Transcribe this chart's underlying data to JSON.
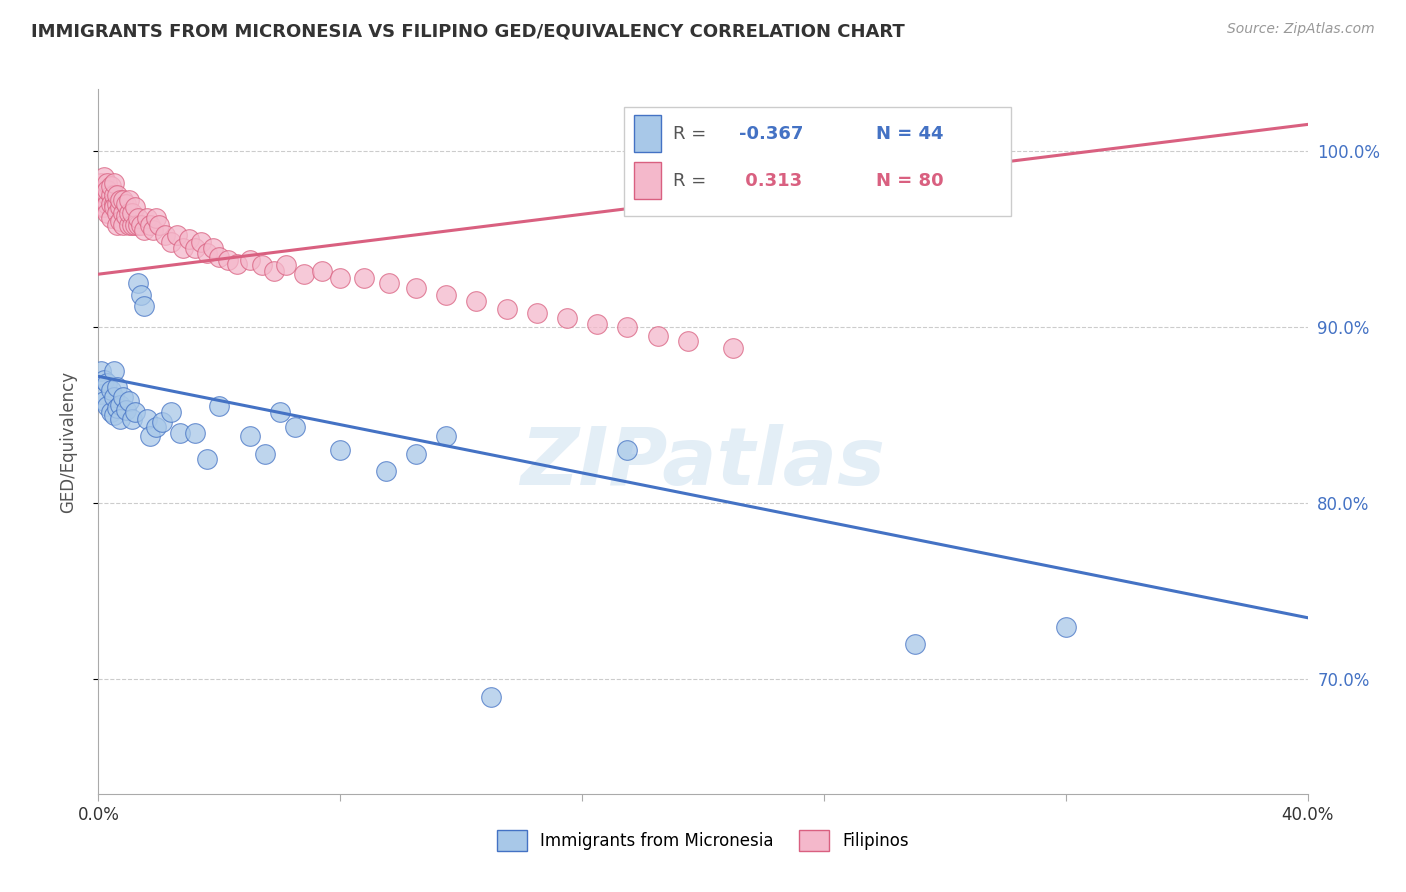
{
  "title": "IMMIGRANTS FROM MICRONESIA VS FILIPINO GED/EQUIVALENCY CORRELATION CHART",
  "source": "Source: ZipAtlas.com",
  "ylabel": "GED/Equivalency",
  "series1_label": "Immigrants from Micronesia",
  "series2_label": "Filipinos",
  "series1_R": -0.367,
  "series1_N": 44,
  "series2_R": 0.313,
  "series2_N": 80,
  "series1_color": "#a8c8e8",
  "series2_color": "#f4b8cb",
  "series1_line_color": "#4472c4",
  "series2_line_color": "#d96080",
  "background_color": "#ffffff",
  "grid_color": "#cccccc",
  "title_color": "#333333",
  "xlim": [
    0.0,
    0.4
  ],
  "ylim": [
    0.635,
    1.035
  ],
  "yticks": [
    0.7,
    0.8,
    0.9,
    1.0
  ],
  "ytick_labels": [
    "70.0%",
    "80.0%",
    "90.0%",
    "100.0%"
  ],
  "blue_line_x0": 0.0,
  "blue_line_y0": 0.872,
  "blue_line_x1": 0.4,
  "blue_line_y1": 0.735,
  "pink_line_x0": 0.0,
  "pink_line_y0": 0.93,
  "pink_line_x1": 0.4,
  "pink_line_y1": 1.015,
  "series1_x": [
    0.001,
    0.001,
    0.002,
    0.002,
    0.003,
    0.003,
    0.004,
    0.004,
    0.005,
    0.005,
    0.005,
    0.006,
    0.006,
    0.007,
    0.007,
    0.008,
    0.009,
    0.01,
    0.011,
    0.012,
    0.013,
    0.014,
    0.015,
    0.016,
    0.017,
    0.019,
    0.021,
    0.024,
    0.027,
    0.032,
    0.036,
    0.04,
    0.05,
    0.055,
    0.06,
    0.065,
    0.08,
    0.095,
    0.105,
    0.115,
    0.13,
    0.175,
    0.27,
    0.32
  ],
  "series1_y": [
    0.862,
    0.875,
    0.858,
    0.87,
    0.855,
    0.868,
    0.852,
    0.864,
    0.85,
    0.86,
    0.875,
    0.854,
    0.866,
    0.856,
    0.848,
    0.86,
    0.853,
    0.858,
    0.848,
    0.852,
    0.925,
    0.918,
    0.912,
    0.848,
    0.838,
    0.843,
    0.846,
    0.852,
    0.84,
    0.84,
    0.825,
    0.855,
    0.838,
    0.828,
    0.852,
    0.843,
    0.83,
    0.818,
    0.828,
    0.838,
    0.69,
    0.83,
    0.72,
    0.73
  ],
  "series2_x": [
    0.001,
    0.001,
    0.001,
    0.002,
    0.002,
    0.002,
    0.002,
    0.003,
    0.003,
    0.003,
    0.003,
    0.003,
    0.004,
    0.004,
    0.004,
    0.004,
    0.005,
    0.005,
    0.005,
    0.005,
    0.006,
    0.006,
    0.006,
    0.006,
    0.007,
    0.007,
    0.007,
    0.008,
    0.008,
    0.008,
    0.009,
    0.009,
    0.01,
    0.01,
    0.01,
    0.011,
    0.011,
    0.012,
    0.012,
    0.013,
    0.013,
    0.014,
    0.015,
    0.016,
    0.017,
    0.018,
    0.019,
    0.02,
    0.022,
    0.024,
    0.026,
    0.028,
    0.03,
    0.032,
    0.034,
    0.036,
    0.038,
    0.04,
    0.043,
    0.046,
    0.05,
    0.054,
    0.058,
    0.062,
    0.068,
    0.074,
    0.08,
    0.088,
    0.096,
    0.105,
    0.115,
    0.125,
    0.135,
    0.145,
    0.155,
    0.165,
    0.175,
    0.185,
    0.195,
    0.21
  ],
  "series2_y": [
    0.975,
    0.968,
    0.982,
    0.978,
    0.972,
    0.985,
    0.968,
    0.975,
    0.97,
    0.982,
    0.978,
    0.965,
    0.975,
    0.97,
    0.98,
    0.962,
    0.97,
    0.975,
    0.968,
    0.982,
    0.97,
    0.965,
    0.975,
    0.958,
    0.968,
    0.972,
    0.96,
    0.965,
    0.972,
    0.958,
    0.963,
    0.97,
    0.958,
    0.965,
    0.972,
    0.958,
    0.965,
    0.958,
    0.968,
    0.958,
    0.962,
    0.958,
    0.955,
    0.962,
    0.958,
    0.955,
    0.962,
    0.958,
    0.952,
    0.948,
    0.952,
    0.945,
    0.95,
    0.945,
    0.948,
    0.942,
    0.945,
    0.94,
    0.938,
    0.936,
    0.938,
    0.935,
    0.932,
    0.935,
    0.93,
    0.932,
    0.928,
    0.928,
    0.925,
    0.922,
    0.918,
    0.915,
    0.91,
    0.908,
    0.905,
    0.902,
    0.9,
    0.895,
    0.892,
    0.888
  ]
}
